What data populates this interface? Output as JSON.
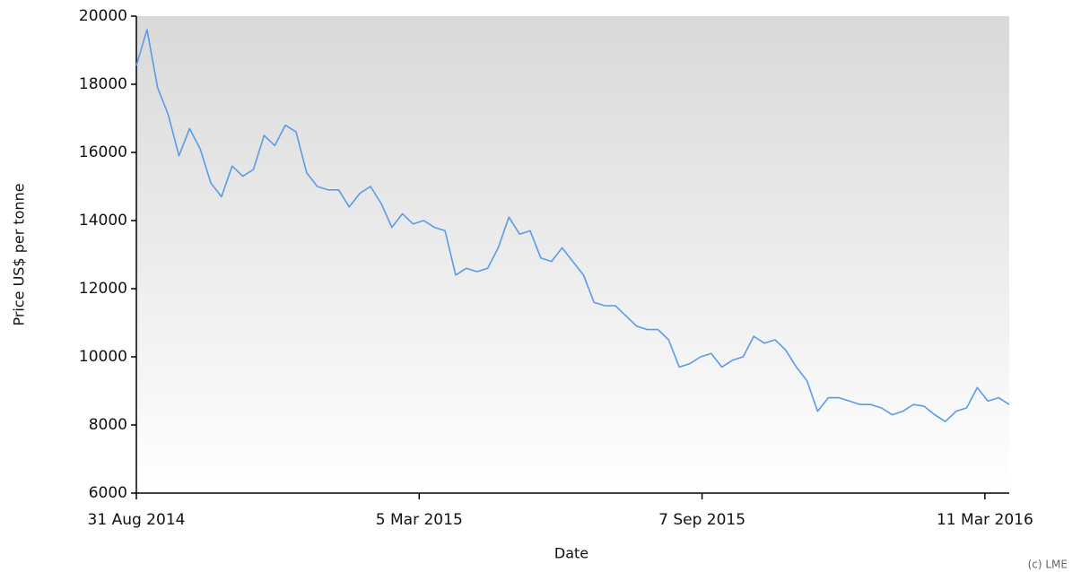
{
  "chart_data": {
    "type": "line",
    "x_label": "Date",
    "y_label": "Price US$ per tonne",
    "credit": "(c) LME",
    "x": [
      "2014-08-31",
      "2014-09-07",
      "2014-09-14",
      "2014-09-21",
      "2014-09-28",
      "2014-10-05",
      "2014-10-12",
      "2014-10-19",
      "2014-10-26",
      "2014-11-02",
      "2014-11-09",
      "2014-11-16",
      "2014-11-23",
      "2014-11-30",
      "2014-12-07",
      "2014-12-14",
      "2014-12-21",
      "2014-12-28",
      "2015-01-04",
      "2015-01-11",
      "2015-01-18",
      "2015-01-25",
      "2015-02-01",
      "2015-02-08",
      "2015-02-15",
      "2015-02-22",
      "2015-03-01",
      "2015-03-08",
      "2015-03-15",
      "2015-03-22",
      "2015-03-29",
      "2015-04-05",
      "2015-04-12",
      "2015-04-19",
      "2015-04-26",
      "2015-05-03",
      "2015-05-10",
      "2015-05-17",
      "2015-05-24",
      "2015-05-31",
      "2015-06-07",
      "2015-06-14",
      "2015-06-21",
      "2015-06-28",
      "2015-07-05",
      "2015-07-12",
      "2015-07-19",
      "2015-07-26",
      "2015-08-02",
      "2015-08-09",
      "2015-08-16",
      "2015-08-23",
      "2015-08-30",
      "2015-09-06",
      "2015-09-13",
      "2015-09-20",
      "2015-09-27",
      "2015-10-04",
      "2015-10-11",
      "2015-10-18",
      "2015-10-25",
      "2015-11-01",
      "2015-11-08",
      "2015-11-15",
      "2015-11-22",
      "2015-11-29",
      "2015-12-06",
      "2015-12-13",
      "2015-12-20",
      "2015-12-27",
      "2016-01-03",
      "2016-01-10",
      "2016-01-17",
      "2016-01-24",
      "2016-01-31",
      "2016-02-07",
      "2016-02-14",
      "2016-02-21",
      "2016-02-28",
      "2016-03-06",
      "2016-03-13",
      "2016-03-20",
      "2016-03-27"
    ],
    "series": [
      {
        "name": "Price",
        "color": "#5a9be8",
        "values": [
          18550,
          19600,
          17900,
          17100,
          15900,
          16700,
          16100,
          15100,
          14700,
          15600,
          15300,
          15500,
          16500,
          16200,
          16800,
          16600,
          15400,
          15000,
          14900,
          14900,
          14400,
          14800,
          15000,
          14500,
          13800,
          14200,
          13900,
          14000,
          13800,
          13700,
          12400,
          12600,
          12500,
          12600,
          13200,
          14100,
          13600,
          13700,
          12900,
          12800,
          13200,
          12800,
          12400,
          11600,
          11500,
          11500,
          11200,
          10900,
          10800,
          10800,
          10500,
          9700,
          9800,
          10000,
          10100,
          9700,
          9900,
          10000,
          10600,
          10400,
          10500,
          10200,
          9700,
          9300,
          8400,
          8800,
          8800,
          8700,
          8600,
          8600,
          8500,
          8300,
          8400,
          8600,
          8550,
          8300,
          8100,
          8400,
          8500,
          9100,
          8700,
          8800,
          8600
        ]
      }
    ],
    "xlim": [
      "2014-08-31",
      "2016-03-27"
    ],
    "xticks": [
      {
        "value": "2014-08-31",
        "label": "31 Aug 2014"
      },
      {
        "value": "2015-03-05",
        "label": "5 Mar 2015"
      },
      {
        "value": "2015-09-07",
        "label": "7 Sep 2015"
      },
      {
        "value": "2016-03-11",
        "label": "11 Mar 2016"
      }
    ],
    "ylim": [
      6000,
      20000
    ],
    "yticks": [
      6000,
      8000,
      10000,
      12000,
      14000,
      16000,
      18000,
      20000
    ],
    "grid": false
  }
}
